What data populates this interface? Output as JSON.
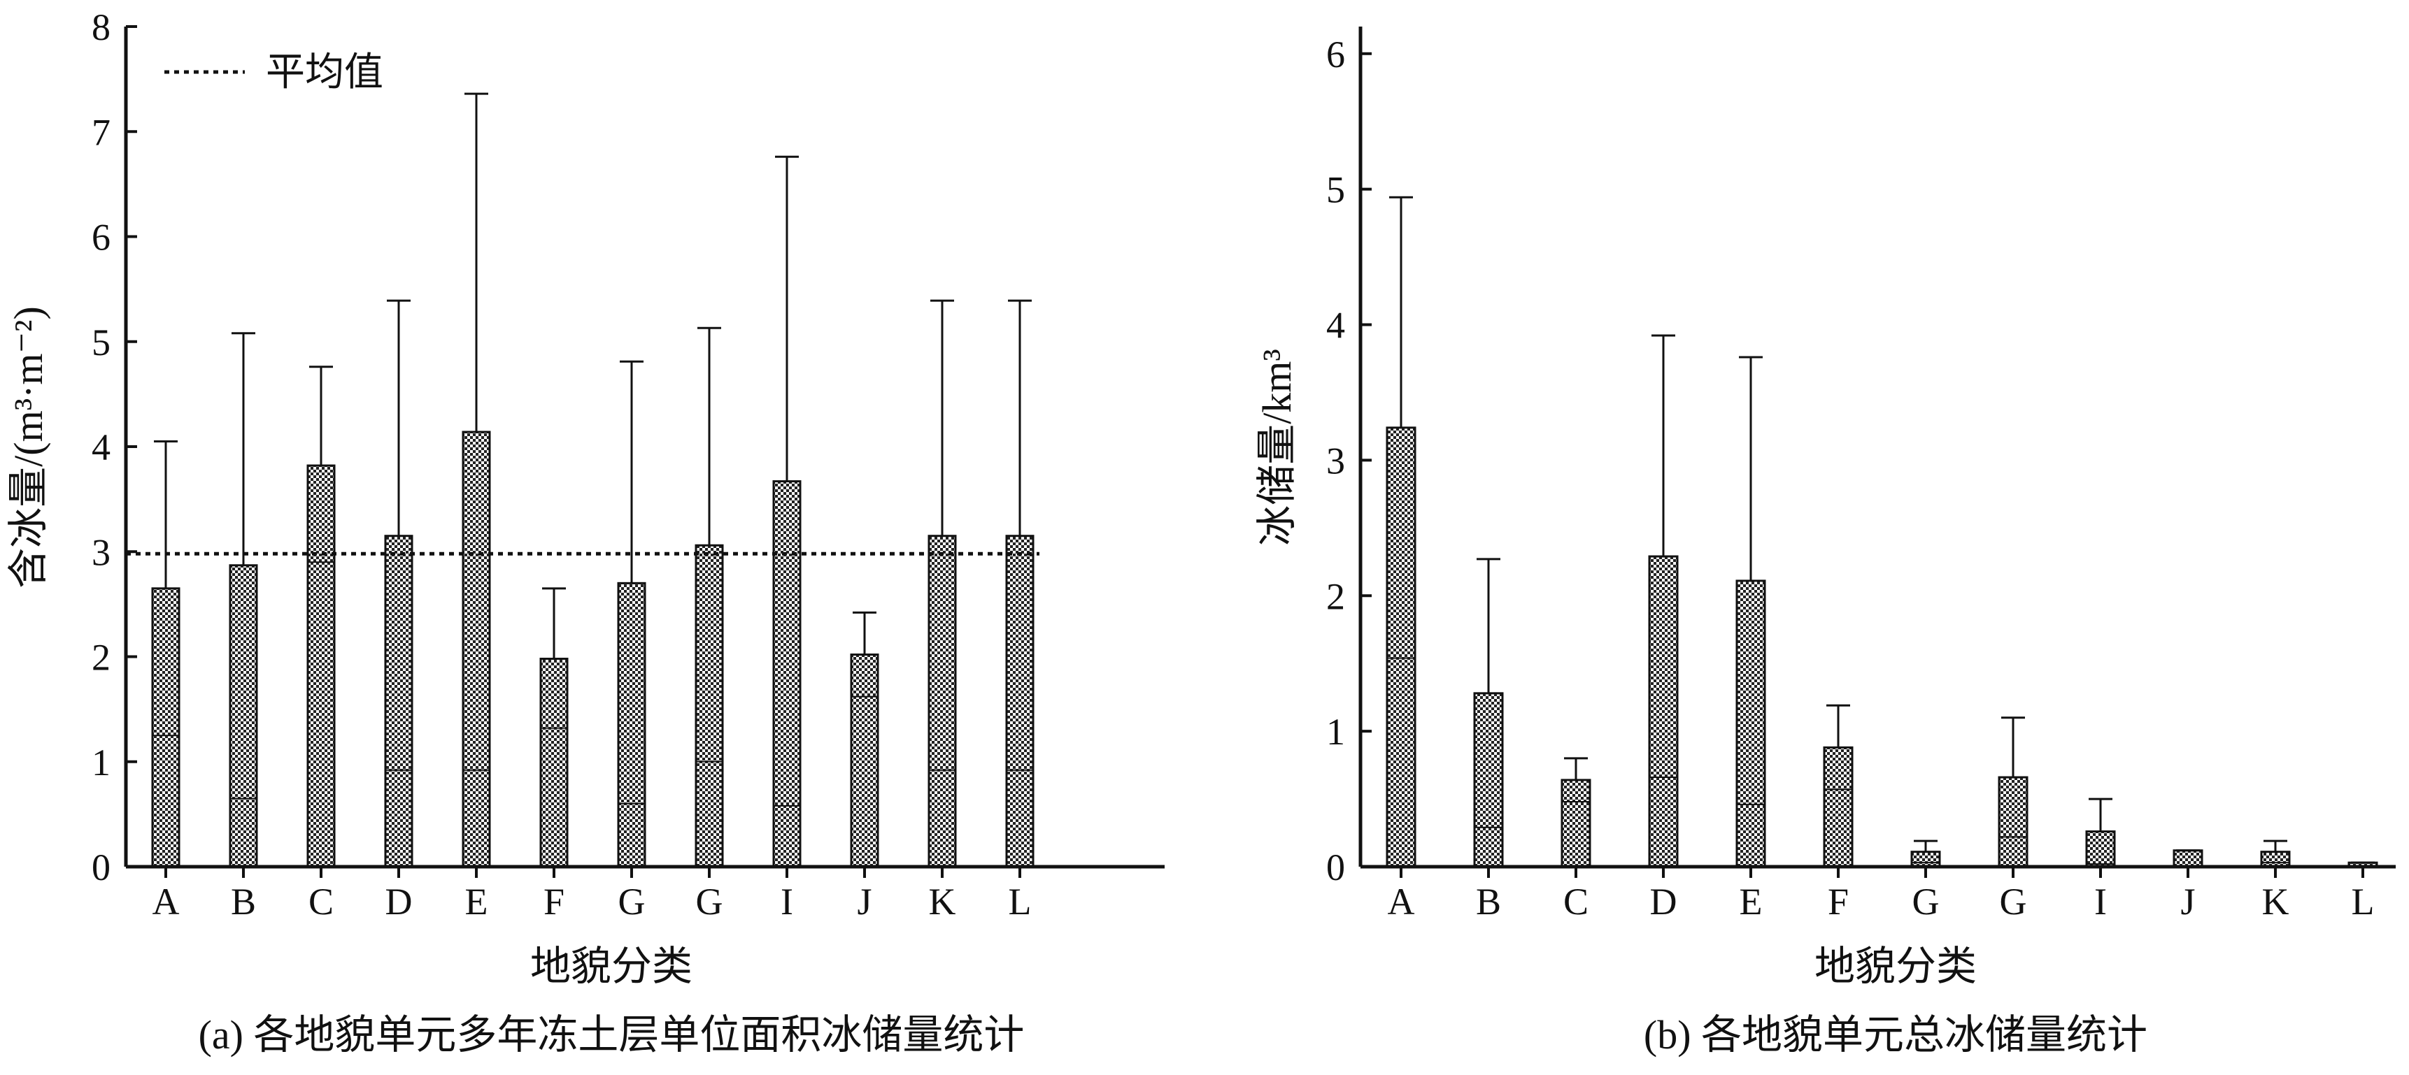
{
  "chart_data": [
    {
      "type": "bar",
      "categories": [
        "A",
        "B",
        "C",
        "D",
        "E",
        "F",
        "G",
        "G",
        "I",
        "J",
        "K",
        "L"
      ],
      "values": [
        2.65,
        2.87,
        3.82,
        3.15,
        4.14,
        1.98,
        2.7,
        3.06,
        3.67,
        2.02,
        3.15,
        3.15
      ],
      "error_upper": [
        4.05,
        5.08,
        4.76,
        5.39,
        7.36,
        2.65,
        4.81,
        5.13,
        6.76,
        2.42,
        5.39,
        5.39
      ],
      "inner_marks": [
        1.25,
        0.65,
        2.9,
        0.92,
        0.92,
        1.32,
        0.6,
        1.0,
        0.58,
        1.62,
        0.92,
        0.92
      ],
      "mean_line": 2.98,
      "legend": [
        "平均值"
      ],
      "xlabel": "地貌分类",
      "ylabel": "含冰量/(m³·m⁻²)",
      "ylim": [
        0,
        8
      ],
      "yticks": [
        "0",
        "1",
        "2",
        "3",
        "4",
        "5",
        "6",
        "7",
        "8"
      ],
      "caption": "(a) 各地貌单元多年冻土层单位面积冰储量统计",
      "legend_placement": "top-left",
      "grid": false
    },
    {
      "type": "bar",
      "categories": [
        "A",
        "B",
        "C",
        "D",
        "E",
        "F",
        "G",
        "G",
        "I",
        "J",
        "K",
        "L"
      ],
      "values": [
        3.24,
        1.28,
        0.64,
        2.29,
        2.11,
        0.88,
        0.11,
        0.66,
        0.26,
        0.12,
        0.11,
        0.03
      ],
      "error_upper": [
        4.94,
        2.27,
        0.8,
        3.92,
        3.76,
        1.19,
        0.19,
        1.1,
        0.5,
        0.12,
        0.19,
        0.03
      ],
      "inner_marks": [
        1.54,
        0.29,
        0.48,
        0.66,
        0.46,
        0.57,
        0.03,
        0.22,
        0.02,
        0.12,
        0.03,
        0.03
      ],
      "xlabel": "地貌分类",
      "ylabel": "冰储量/km³",
      "ylim": [
        0,
        6.2
      ],
      "yticks": [
        "0",
        "1",
        "2",
        "3",
        "4",
        "5",
        "6"
      ],
      "caption": "(b) 各地貌单元总冰储量统计",
      "grid": false
    }
  ]
}
